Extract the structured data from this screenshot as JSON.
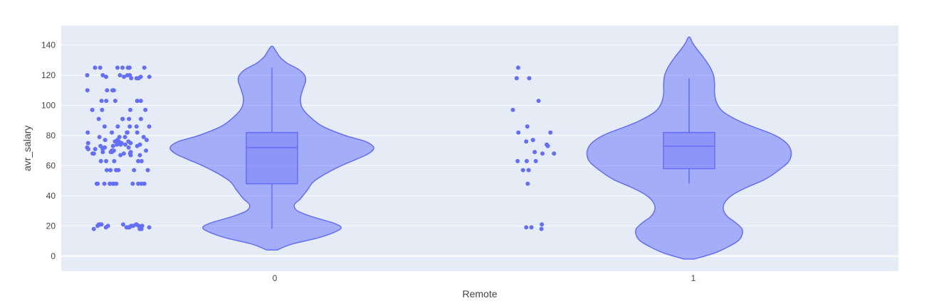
{
  "chart_data": {
    "type": "violin",
    "xlabel": "Remote",
    "ylabel": "avr_salary",
    "ylim": [
      -10,
      153
    ],
    "yticks": [
      0,
      20,
      40,
      60,
      80,
      100,
      120,
      140
    ],
    "categories": [
      "0",
      "1"
    ],
    "grid": true,
    "colors": {
      "plot_bg": "#e5ecf6",
      "grid": "#ffffff",
      "violin_fill": "#636efa",
      "violin_line": "#636efa",
      "point": "#636efa",
      "text": "#444444"
    },
    "groups": [
      {
        "category": "0",
        "box": {
          "q1": 48,
          "median": 72,
          "q3": 82,
          "whisker_low": 18,
          "whisker_high": 125
        },
        "violin_range": [
          4,
          139
        ],
        "density": [
          [
            4,
            0.05
          ],
          [
            8,
            0.2
          ],
          [
            12,
            0.45
          ],
          [
            16,
            0.62
          ],
          [
            19,
            0.68
          ],
          [
            22,
            0.6
          ],
          [
            26,
            0.4
          ],
          [
            30,
            0.25
          ],
          [
            34,
            0.22
          ],
          [
            38,
            0.28
          ],
          [
            44,
            0.35
          ],
          [
            50,
            0.42
          ],
          [
            58,
            0.62
          ],
          [
            64,
            0.82
          ],
          [
            68,
            0.95
          ],
          [
            72,
            1.0
          ],
          [
            76,
            0.92
          ],
          [
            80,
            0.72
          ],
          [
            86,
            0.5
          ],
          [
            92,
            0.38
          ],
          [
            98,
            0.3
          ],
          [
            104,
            0.28
          ],
          [
            110,
            0.3
          ],
          [
            116,
            0.33
          ],
          [
            120,
            0.32
          ],
          [
            124,
            0.26
          ],
          [
            128,
            0.15
          ],
          [
            132,
            0.08
          ],
          [
            136,
            0.04
          ],
          [
            139,
            0.01
          ]
        ],
        "points": [
          19,
          19,
          19,
          19,
          19,
          19,
          20,
          20,
          20,
          20,
          20,
          20,
          21,
          21,
          21,
          21,
          21,
          21,
          18,
          18,
          18,
          48,
          48,
          48,
          48,
          48,
          48,
          48,
          48,
          48,
          48,
          48,
          48,
          57,
          57,
          57,
          57,
          57,
          57,
          63,
          63,
          63,
          63,
          63,
          67,
          67,
          67,
          68,
          68,
          68,
          68,
          69,
          69,
          69,
          69,
          70,
          70,
          70,
          70,
          71,
          71,
          71,
          72,
          72,
          72,
          72,
          73,
          73,
          73,
          74,
          74,
          74,
          74,
          75,
          75,
          75,
          76,
          76,
          76,
          77,
          77,
          77,
          79,
          79,
          79,
          79,
          82,
          82,
          82,
          82,
          82,
          86,
          86,
          86,
          86,
          86,
          91,
          91,
          91,
          91,
          91,
          97,
          97,
          97,
          97,
          97,
          103,
          103,
          103,
          103,
          103,
          103,
          110,
          110,
          110,
          110,
          118,
          118,
          118,
          119,
          119,
          119,
          119,
          120,
          120,
          120,
          120,
          120,
          125,
          125,
          125,
          125,
          125,
          125,
          125,
          125
        ]
      },
      {
        "category": "1",
        "box": {
          "q1": 58,
          "median": 73,
          "q3": 82,
          "whisker_low": 48,
          "whisker_high": 118
        },
        "violin_range": [
          -2,
          145
        ],
        "density": [
          [
            -2,
            0.05
          ],
          [
            2,
            0.25
          ],
          [
            6,
            0.38
          ],
          [
            10,
            0.48
          ],
          [
            14,
            0.52
          ],
          [
            18,
            0.52
          ],
          [
            22,
            0.46
          ],
          [
            26,
            0.38
          ],
          [
            30,
            0.34
          ],
          [
            34,
            0.34
          ],
          [
            38,
            0.38
          ],
          [
            42,
            0.46
          ],
          [
            46,
            0.58
          ],
          [
            50,
            0.72
          ],
          [
            54,
            0.82
          ],
          [
            58,
            0.9
          ],
          [
            62,
            0.97
          ],
          [
            66,
            1.0
          ],
          [
            70,
            1.0
          ],
          [
            74,
            0.97
          ],
          [
            78,
            0.9
          ],
          [
            82,
            0.78
          ],
          [
            86,
            0.62
          ],
          [
            90,
            0.48
          ],
          [
            96,
            0.33
          ],
          [
            102,
            0.27
          ],
          [
            108,
            0.25
          ],
          [
            114,
            0.25
          ],
          [
            120,
            0.24
          ],
          [
            126,
            0.2
          ],
          [
            132,
            0.14
          ],
          [
            138,
            0.07
          ],
          [
            142,
            0.03
          ],
          [
            145,
            0.01
          ]
        ],
        "points": [
          18,
          19,
          19,
          21,
          48,
          57,
          57,
          63,
          63,
          63,
          68,
          68,
          69,
          73,
          74,
          76,
          77,
          77,
          82,
          82,
          86,
          97,
          103,
          118,
          118,
          125
        ]
      }
    ]
  }
}
